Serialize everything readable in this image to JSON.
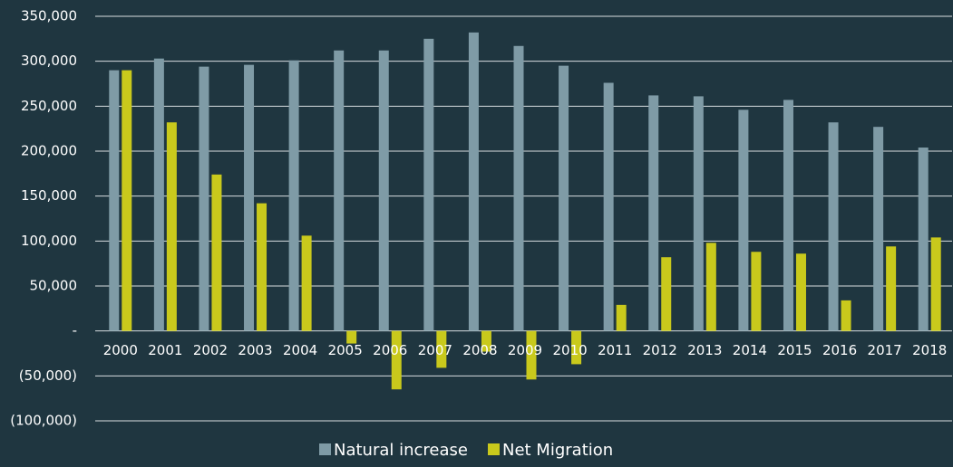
{
  "chart_data": {
    "type": "bar",
    "categories": [
      "2000",
      "2001",
      "2002",
      "2003",
      "2004",
      "2005",
      "2006",
      "2007",
      "2008",
      "2009",
      "2010",
      "2011",
      "2012",
      "2013",
      "2014",
      "2015",
      "2016",
      "2017",
      "2018"
    ],
    "series": [
      {
        "name": "Natural increase",
        "color": "#7f9ba6",
        "values": [
          290000,
          303000,
          294000,
          296000,
          301000,
          312000,
          312000,
          325000,
          332000,
          317000,
          295000,
          276000,
          262000,
          261000,
          246000,
          257000,
          232000,
          227000,
          204000
        ]
      },
      {
        "name": "Net Migration",
        "color": "#c9c91c",
        "values": [
          290000,
          232000,
          174000,
          142000,
          106000,
          -14000,
          -65000,
          -41000,
          -23000,
          -54000,
          -37000,
          29000,
          82000,
          98000,
          88000,
          86000,
          34000,
          94000,
          104000
        ]
      }
    ],
    "ylim": [
      -100000,
      350000
    ],
    "yticks": [
      {
        "value": -100000,
        "label": "(100,000)"
      },
      {
        "value": -50000,
        "label": "(50,000)"
      },
      {
        "value": 0,
        "label": "-"
      },
      {
        "value": 50000,
        "label": "50,000"
      },
      {
        "value": 100000,
        "label": "100,000"
      },
      {
        "value": 150000,
        "label": "150,000"
      },
      {
        "value": 200000,
        "label": "200,000"
      },
      {
        "value": 250000,
        "label": "250,000"
      },
      {
        "value": 300000,
        "label": "300,000"
      },
      {
        "value": 350000,
        "label": "350,000"
      }
    ],
    "grid": true,
    "legend": "bottom"
  }
}
